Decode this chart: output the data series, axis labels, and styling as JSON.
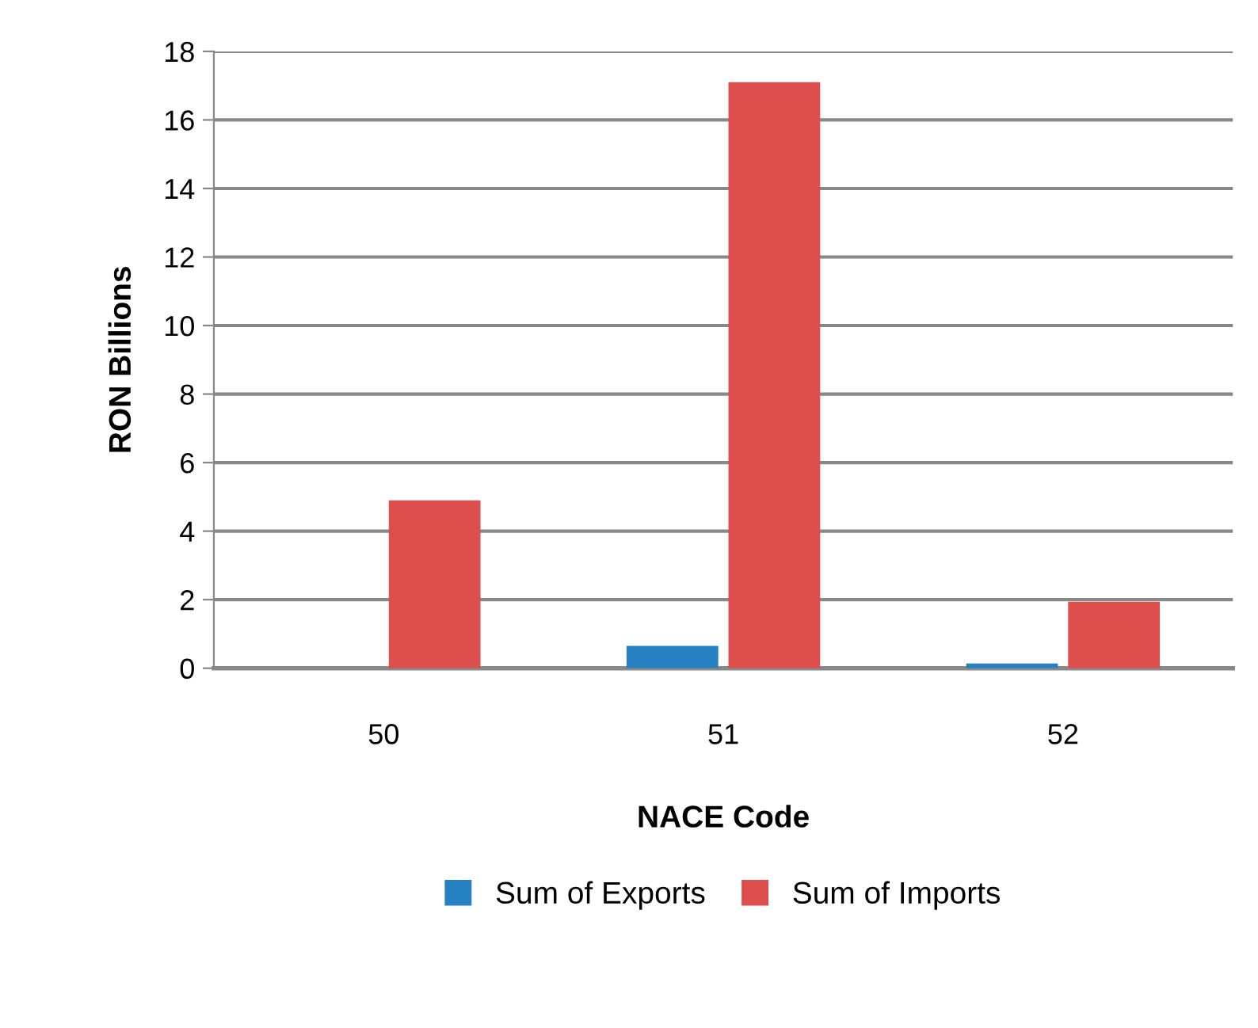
{
  "chart_data": {
    "type": "bar",
    "xlabel": "NACE Code",
    "ylabel": "RON Billions",
    "categories": [
      "50",
      "51",
      "52"
    ],
    "series": [
      {
        "name": "Sum of Exports",
        "color": "#2581c1",
        "values": [
          0,
          0.65,
          0.14
        ]
      },
      {
        "name": "Sum of Imports",
        "color": "#dd4f4c",
        "values": [
          4.9,
          17.1,
          1.94
        ]
      }
    ],
    "ylim": [
      0,
      18
    ],
    "yticks": [
      0,
      2,
      4,
      6,
      8,
      10,
      12,
      14,
      16,
      18
    ],
    "grid": "y",
    "legend": "bottom"
  }
}
